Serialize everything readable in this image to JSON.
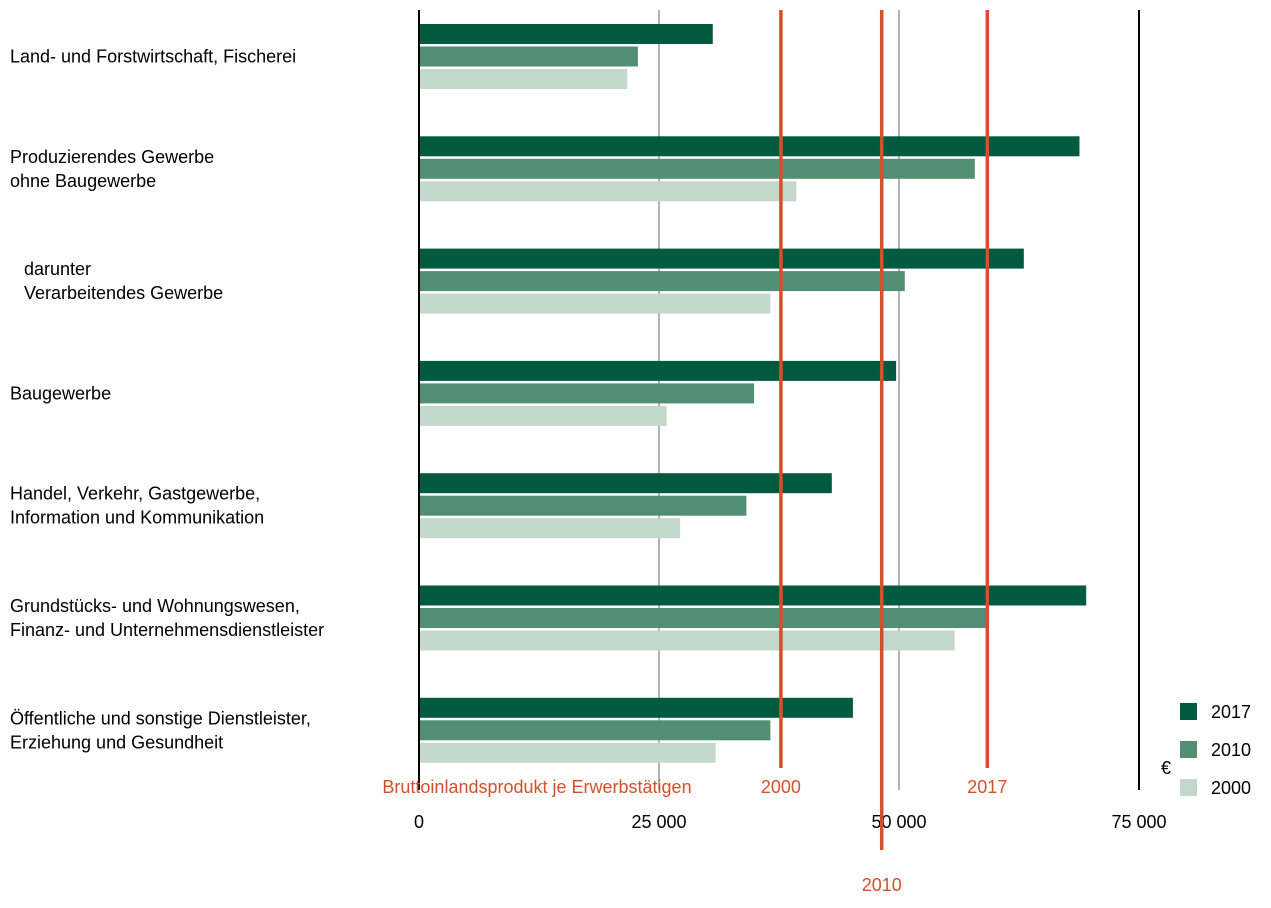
{
  "chart_data": {
    "type": "bar",
    "orientation": "horizontal",
    "categories": [
      [
        "Land- und Forstwirtschaft, Fischerei"
      ],
      [
        "Produzierendes Gewerbe",
        "ohne Baugewerbe"
      ],
      [
        "darunter",
        "Verarbeitendes Gewerbe"
      ],
      [
        "Baugewerbe"
      ],
      [
        "Handel, Verkehr, Gastgewerbe,",
        "Information und Kommunikation"
      ],
      [
        "Grundstücks- und Wohnungswesen,",
        "Finanz- und Unternehmensdienstleister"
      ],
      [
        "Öffentliche und sonstige Dienstleister,",
        "Erziehung und Gesundheit"
      ]
    ],
    "category_indented": [
      false,
      false,
      true,
      false,
      false,
      false,
      false
    ],
    "series": [
      {
        "name": "2017",
        "color": "#005a3f",
        "values": [
          30600,
          68800,
          63000,
          49700,
          43000,
          69500,
          45200
        ]
      },
      {
        "name": "2010",
        "color": "#528e72",
        "values": [
          22800,
          57900,
          50600,
          34900,
          34100,
          59100,
          36600
        ]
      },
      {
        "name": "2000",
        "color": "#c3d8cb",
        "values": [
          21700,
          39300,
          36600,
          25800,
          27200,
          55800,
          30900
        ]
      }
    ],
    "xlim": [
      0,
      75000
    ],
    "x_ticks": [
      0,
      25000,
      50000,
      75000
    ],
    "x_tick_labels": [
      "0",
      "25 000",
      "50 000",
      "75 000"
    ],
    "x_unit": "€",
    "grid": true,
    "legend_position": "bottom-right",
    "reference_lines": {
      "label": "Bruttoinlandsprodukt je Erwerbstätigen",
      "color": "#d4502a",
      "lines": [
        {
          "name": "2000",
          "value": 37700
        },
        {
          "name": "2010",
          "value": 48200
        },
        {
          "name": "2017",
          "value": 59200
        }
      ]
    }
  }
}
